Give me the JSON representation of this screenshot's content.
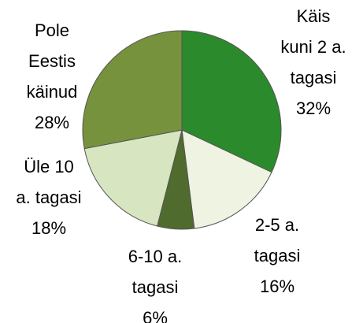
{
  "chart_data": {
    "type": "pie",
    "categories": [
      "Käis kuni 2 a. tagasi",
      "2-5 a. tagasi",
      "6-10 a. tagasi",
      "Üle 10 a. tagasi",
      "Pole Eestis käinud"
    ],
    "values": [
      32,
      16,
      6,
      18,
      28
    ],
    "value_labels": [
      "32%",
      "16%",
      "6%",
      "18%",
      "28%"
    ],
    "colors": [
      "#2b8a2b",
      "#eef3e2",
      "#4f6b2e",
      "#d7e6c0",
      "#76923c"
    ]
  }
}
